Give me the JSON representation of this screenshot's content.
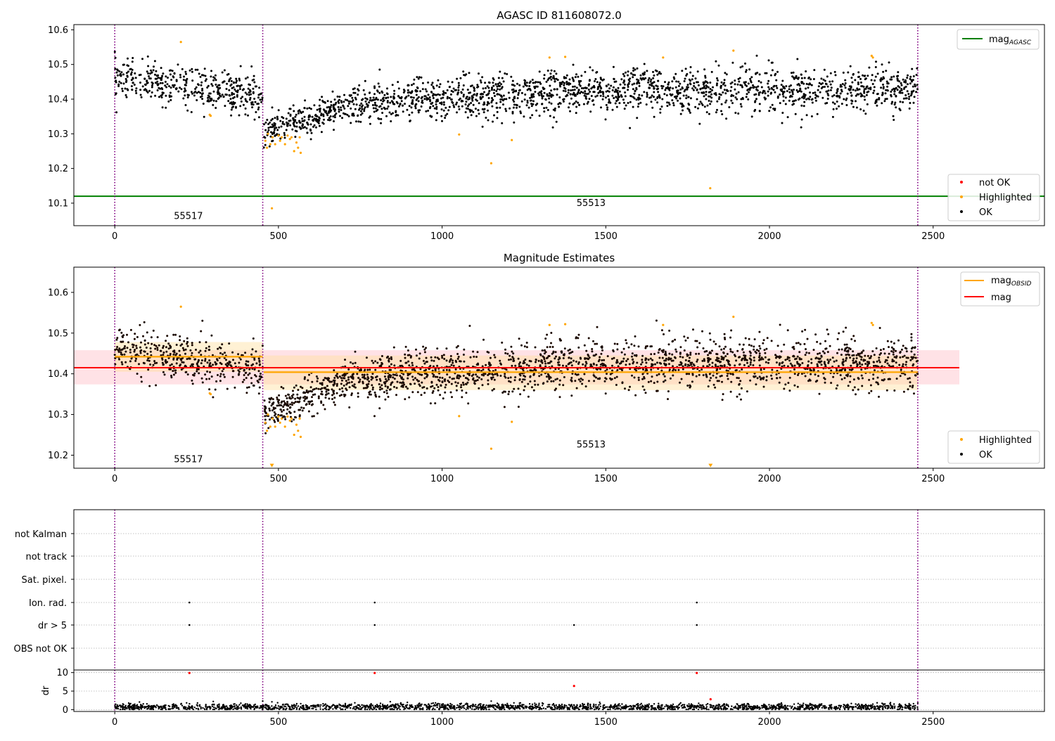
{
  "figure": {
    "top_title": "AGASC ID 811608072.0",
    "middle_title": "Magnitude Estimates"
  },
  "chart_data": [
    {
      "type": "scatter",
      "title": "AGASC ID 811608072.0",
      "xlim": [
        -125,
        2840
      ],
      "ylim": [
        10.035,
        10.615
      ],
      "xticks": [
        0,
        500,
        1000,
        1500,
        2000,
        2500
      ],
      "yticks": [
        10.1,
        10.2,
        10.3,
        10.4,
        10.5,
        10.6
      ],
      "grid": false,
      "obsid_boundaries": [
        0,
        452,
        2453
      ],
      "obsid_labels": [
        {
          "text": "55517",
          "x": 225,
          "y": 10.062
        },
        {
          "text": "55513",
          "x": 1455,
          "y": 10.1
        }
      ],
      "reference_lines": [
        {
          "name": "mag_AGASC",
          "y": 10.12,
          "x_range": [
            -125,
            2840
          ],
          "color": "#008000"
        }
      ],
      "series": [
        {
          "name": "not OK",
          "color": "#ff0000",
          "points": []
        },
        {
          "name": "Highlighted",
          "color": "#ffa500",
          "points": [
            [
              202,
              10.565
            ],
            [
              290,
              10.355
            ],
            [
              293,
              10.352
            ],
            [
              460,
              10.28
            ],
            [
              465,
              10.26
            ],
            [
              468,
              10.3
            ],
            [
              475,
              10.27
            ],
            [
              480,
              10.085
            ],
            [
              482,
              10.29
            ],
            [
              490,
              10.27
            ],
            [
              500,
              10.295
            ],
            [
              505,
              10.28
            ],
            [
              510,
              10.29
            ],
            [
              520,
              10.27
            ],
            [
              528,
              10.295
            ],
            [
              535,
              10.285
            ],
            [
              540,
              10.29
            ],
            [
              548,
              10.25
            ],
            [
              555,
              10.275
            ],
            [
              560,
              10.26
            ],
            [
              565,
              10.29
            ],
            [
              568,
              10.245
            ],
            [
              1052,
              10.298
            ],
            [
              1150,
              10.215
            ],
            [
              1213,
              10.282
            ],
            [
              1328,
              10.52
            ],
            [
              1376,
              10.522
            ],
            [
              1675,
              10.52
            ],
            [
              1819,
              10.143
            ],
            [
              1890,
              10.54
            ],
            [
              2312,
              10.525
            ],
            [
              2316,
              10.52
            ]
          ]
        },
        {
          "name": "OK",
          "color": "#000000",
          "generated_from": "segments",
          "segments": [
            {
              "x_range": [
                0,
                452
              ],
              "n": 420,
              "baseline": [
                10.46,
                10.41
              ],
              "spread": 0.028
            },
            {
              "x_range": [
                455,
                700
              ],
              "n": 260,
              "baseline": [
                10.3,
                10.38
              ],
              "spread": 0.022
            },
            {
              "x_range": [
                700,
                1300
              ],
              "n": 620,
              "baseline": [
                10.385,
                10.415
              ],
              "spread": 0.03
            },
            {
              "x_range": [
                1300,
                2453
              ],
              "n": 1150,
              "baseline": [
                10.425,
                10.425
              ],
              "spread": 0.032
            }
          ]
        }
      ],
      "legend": {
        "position": "top-right",
        "entries": [
          "mag_AGASC"
        ]
      },
      "legend2": {
        "position": "bottom-right",
        "entries": [
          "not OK",
          "Highlighted",
          "OK"
        ]
      }
    },
    {
      "type": "scatter",
      "title": "Magnitude Estimates",
      "xlim": [
        -125,
        2840
      ],
      "ylim": [
        10.168,
        10.662
      ],
      "xticks": [
        0,
        500,
        1000,
        1500,
        2000,
        2500
      ],
      "yticks": [
        10.2,
        10.3,
        10.4,
        10.5,
        10.6
      ],
      "grid": false,
      "obsid_boundaries": [
        0,
        452,
        2453
      ],
      "obsid_labels": [
        {
          "text": "55517",
          "x": 225,
          "y": 10.19
        },
        {
          "text": "55513",
          "x": 1455,
          "y": 10.226
        }
      ],
      "bands": [
        {
          "name": "mag band",
          "x_range": [
            -125,
            2580
          ],
          "y_range": [
            10.374,
            10.458
          ],
          "color": "#ffb6c1",
          "opacity": 0.4
        },
        {
          "name": "mag_OBSID 55517 band",
          "x_range": [
            0,
            452
          ],
          "y_range": [
            10.405,
            10.478
          ],
          "color": "#ffdfa0",
          "opacity": 0.45
        },
        {
          "name": "mag_OBSID 55513 band",
          "x_range": [
            455,
            2453
          ],
          "y_range": [
            10.36,
            10.445
          ],
          "color": "#ffdfa0",
          "opacity": 0.45
        }
      ],
      "reference_lines": [
        {
          "name": "mag_OBSID",
          "segments": [
            {
              "x_range": [
                0,
                452
              ],
              "y": 10.442
            },
            {
              "x_range": [
                455,
                2453
              ],
              "y": 10.404
            }
          ],
          "color": "#ffa500"
        },
        {
          "name": "mag",
          "y": 10.415,
          "x_range": [
            -125,
            2580
          ],
          "color": "#ff0000"
        }
      ],
      "series": [
        {
          "name": "Highlighted",
          "color": "#ffa500",
          "points": [
            [
              202,
              10.565
            ],
            [
              290,
              10.352
            ],
            [
              293,
              10.35
            ],
            [
              460,
              10.28
            ],
            [
              465,
              10.26
            ],
            [
              468,
              10.3
            ],
            [
              475,
              10.27
            ],
            [
              482,
              10.29
            ],
            [
              490,
              10.27
            ],
            [
              500,
              10.295
            ],
            [
              505,
              10.28
            ],
            [
              510,
              10.29
            ],
            [
              520,
              10.27
            ],
            [
              528,
              10.295
            ],
            [
              535,
              10.285
            ],
            [
              540,
              10.29
            ],
            [
              548,
              10.25
            ],
            [
              555,
              10.275
            ],
            [
              560,
              10.26
            ],
            [
              565,
              10.29
            ],
            [
              568,
              10.245
            ],
            [
              1052,
              10.296
            ],
            [
              1150,
              10.216
            ],
            [
              1213,
              10.282
            ],
            [
              1328,
              10.52
            ],
            [
              1376,
              10.522
            ],
            [
              1675,
              10.52
            ],
            [
              1890,
              10.54
            ],
            [
              2312,
              10.525
            ],
            [
              2316,
              10.52
            ]
          ]
        },
        {
          "name": "Highlighted (off-scale markers)",
          "color": "#ffa500",
          "marker": "triangle-down",
          "points": [
            [
              480,
              10.172
            ],
            [
              1820,
              10.172
            ]
          ]
        },
        {
          "name": "OK",
          "color": "#000000",
          "generated_from": "segments",
          "segments": [
            {
              "x_range": [
                0,
                452
              ],
              "n": 420,
              "baseline": [
                10.46,
                10.41
              ],
              "spread": 0.028
            },
            {
              "x_range": [
                455,
                700
              ],
              "n": 260,
              "baseline": [
                10.3,
                10.38
              ],
              "spread": 0.022
            },
            {
              "x_range": [
                700,
                1300
              ],
              "n": 620,
              "baseline": [
                10.385,
                10.415
              ],
              "spread": 0.03
            },
            {
              "x_range": [
                1300,
                2453
              ],
              "n": 1150,
              "baseline": [
                10.425,
                10.425
              ],
              "spread": 0.032
            }
          ]
        }
      ],
      "legend": {
        "position": "top-right",
        "entries": [
          "mag_OBSID",
          "mag"
        ]
      },
      "legend2": {
        "position": "bottom-right",
        "entries": [
          "Highlighted",
          "OK"
        ]
      }
    },
    {
      "type": "scatter",
      "title": "",
      "xlim": [
        -125,
        2840
      ],
      "categories": [
        "not Kalman",
        "not track",
        "Sat. pixel.",
        "Ion. rad.",
        "dr > 5",
        "OBS not OK"
      ],
      "obsid_boundaries": [
        0,
        452,
        2453
      ],
      "flag_points": {
        "Ion. rad.": [
          228,
          794,
          1778
        ],
        "dr > 5": [
          228,
          794,
          1403,
          1778
        ]
      },
      "grid": true
    },
    {
      "type": "scatter",
      "title": "",
      "xlim": [
        -125,
        2840
      ],
      "ylim": [
        -0.5,
        10.7
      ],
      "ylabel": "dr",
      "xticks": [
        0,
        500,
        1000,
        1500,
        2000,
        2500
      ],
      "yticks": [
        0,
        5,
        10
      ],
      "grid": true,
      "obsid_boundaries": [
        0,
        452,
        2453
      ],
      "series": [
        {
          "name": "dr not OK",
          "color": "#ff0000",
          "points": [
            [
              228,
              9.9
            ],
            [
              794,
              9.9
            ],
            [
              1403,
              6.4
            ],
            [
              1778,
              9.9
            ],
            [
              1820,
              2.8
            ]
          ]
        },
        {
          "name": "dr",
          "color": "#000000",
          "generated_from": "segments",
          "segments": [
            {
              "x_range": [
                0,
                2453
              ],
              "n": 2200,
              "baseline": [
                0.7,
                0.7
              ],
              "spread": 0.45
            }
          ],
          "extra_points": [
            [
              480,
              2.1
            ],
            [
              1150,
              2.3
            ],
            [
              2453,
              1.8
            ],
            [
              2440,
              1.6
            ]
          ]
        }
      ]
    }
  ],
  "colors": {
    "axis": "#000000",
    "grid": "#b0b0b0",
    "boundary": "#800080"
  },
  "icons": [
    "legend-line",
    "legend-dot"
  ]
}
